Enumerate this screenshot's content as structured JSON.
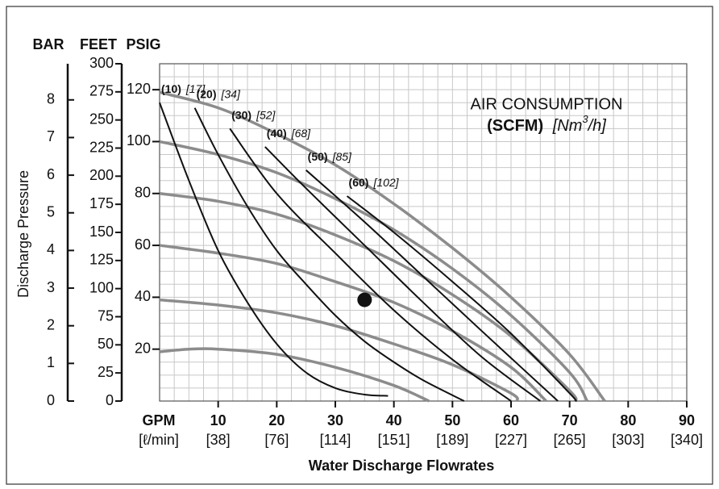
{
  "chart_data": {
    "type": "pump-curve",
    "annotation": {
      "line1": "AIR CONSUMPTION",
      "unit": "(SCFM)",
      "metric_prefix": "[Nm",
      "metric_sup": "3",
      "metric_suffix": "/h]"
    },
    "y_title": "Discharge Pressure",
    "x_title": "Water Discharge Flowrates",
    "x_unit": "GPM",
    "x_unit_metric": "[ℓ/min]",
    "xlim": [
      0,
      90
    ],
    "xticks": [
      10,
      20,
      30,
      40,
      50,
      60,
      70,
      80,
      90
    ],
    "xticks_metric": [
      "[38]",
      "[76]",
      "[114]",
      "[151]",
      "[189]",
      "[227]",
      "[265]",
      "[303]",
      "[340]"
    ],
    "xgrid": [
      0,
      2.5,
      5,
      7.5,
      10,
      12.5,
      15,
      17.5,
      20,
      22.5,
      25,
      27.5,
      30,
      32.5,
      35,
      37.5,
      40,
      42.5,
      45,
      47.5,
      50,
      52.5,
      55,
      57.5,
      60,
      62.5,
      65,
      67.5,
      70,
      72.5,
      75,
      77.5,
      80,
      82.5,
      85,
      87.5,
      90
    ],
    "axes": [
      {
        "title": "BAR",
        "ylim": [
          0,
          8.96
        ],
        "yticks": [
          0,
          1,
          2,
          3,
          4,
          5,
          6,
          7,
          8
        ]
      },
      {
        "title": "FEET",
        "ylim": [
          0,
          300
        ],
        "yticks": [
          0,
          25,
          50,
          75,
          100,
          125,
          150,
          175,
          200,
          225,
          250,
          275,
          300
        ]
      },
      {
        "title": "PSIG",
        "ylim": [
          0,
          130
        ],
        "yticks": [
          20,
          40,
          60,
          80,
          100,
          120
        ]
      }
    ],
    "ygrid": [
      0,
      5,
      10,
      15,
      20,
      25,
      30,
      35,
      40,
      45,
      50,
      55,
      60,
      65,
      70,
      75,
      80,
      85,
      90,
      95,
      100,
      105,
      110,
      115,
      120,
      125,
      130
    ],
    "grid": true,
    "pressure_color": "#8c8c8c",
    "consumption_color": "#111111",
    "pressure_curves": [
      {
        "x": [
          0,
          5,
          10,
          20,
          30,
          40,
          46
        ],
        "values": [
          19,
          20,
          20,
          18,
          13,
          6,
          0
        ]
      },
      {
        "x": [
          0,
          10,
          20,
          30,
          40,
          50,
          60,
          61
        ],
        "values": [
          39,
          37,
          34,
          29,
          22,
          14,
          3,
          0
        ]
      },
      {
        "x": [
          0,
          10,
          20,
          30,
          40,
          50,
          60,
          66
        ],
        "values": [
          60,
          57,
          53,
          46,
          38,
          27,
          13,
          0
        ]
      },
      {
        "x": [
          0,
          10,
          20,
          30,
          40,
          50,
          60,
          70,
          71
        ],
        "values": [
          80,
          77,
          72,
          64,
          54,
          41,
          25,
          4,
          0
        ]
      },
      {
        "x": [
          0,
          10,
          20,
          30,
          40,
          50,
          60,
          70,
          73
        ],
        "values": [
          100,
          95,
          88,
          78,
          66,
          51,
          33,
          11,
          0
        ]
      },
      {
        "x": [
          0,
          10,
          20,
          30,
          40,
          50,
          60,
          70,
          76
        ],
        "values": [
          119,
          113,
          103,
          91,
          76,
          59,
          40,
          18,
          0
        ]
      }
    ],
    "consumption_curves": [
      {
        "name": "(10)",
        "metric": "[17]",
        "x": [
          0,
          5,
          10,
          15,
          20,
          25,
          30,
          35,
          39
        ],
        "values": [
          115,
          85,
          58,
          38,
          22,
          11,
          5,
          2.5,
          2
        ]
      },
      {
        "name": "(20)",
        "metric": "[34]",
        "x": [
          6,
          10,
          15,
          20,
          25,
          30,
          35,
          40,
          45,
          52
        ],
        "values": [
          113,
          95,
          75,
          58,
          45,
          33,
          23,
          15,
          8,
          0
        ]
      },
      {
        "name": "(30)",
        "metric": "[52]",
        "x": [
          12,
          20,
          30,
          40,
          50,
          60
        ],
        "values": [
          105,
          80,
          57,
          35,
          16,
          0
        ]
      },
      {
        "name": "(40)",
        "metric": "[68]",
        "x": [
          18,
          25,
          35,
          45,
          55,
          65
        ],
        "values": [
          98,
          82,
          60,
          38,
          17,
          0
        ]
      },
      {
        "name": "(50)",
        "metric": "[85]",
        "x": [
          25,
          35,
          45,
          55,
          68
        ],
        "values": [
          89,
          69,
          48,
          27,
          0
        ]
      },
      {
        "name": "(60)",
        "metric": "[102]",
        "x": [
          32,
          40,
          50,
          60,
          70,
          71
        ],
        "values": [
          79,
          65,
          46,
          26,
          3,
          0
        ]
      }
    ],
    "operating_point": {
      "x": 35,
      "y": 39
    }
  }
}
